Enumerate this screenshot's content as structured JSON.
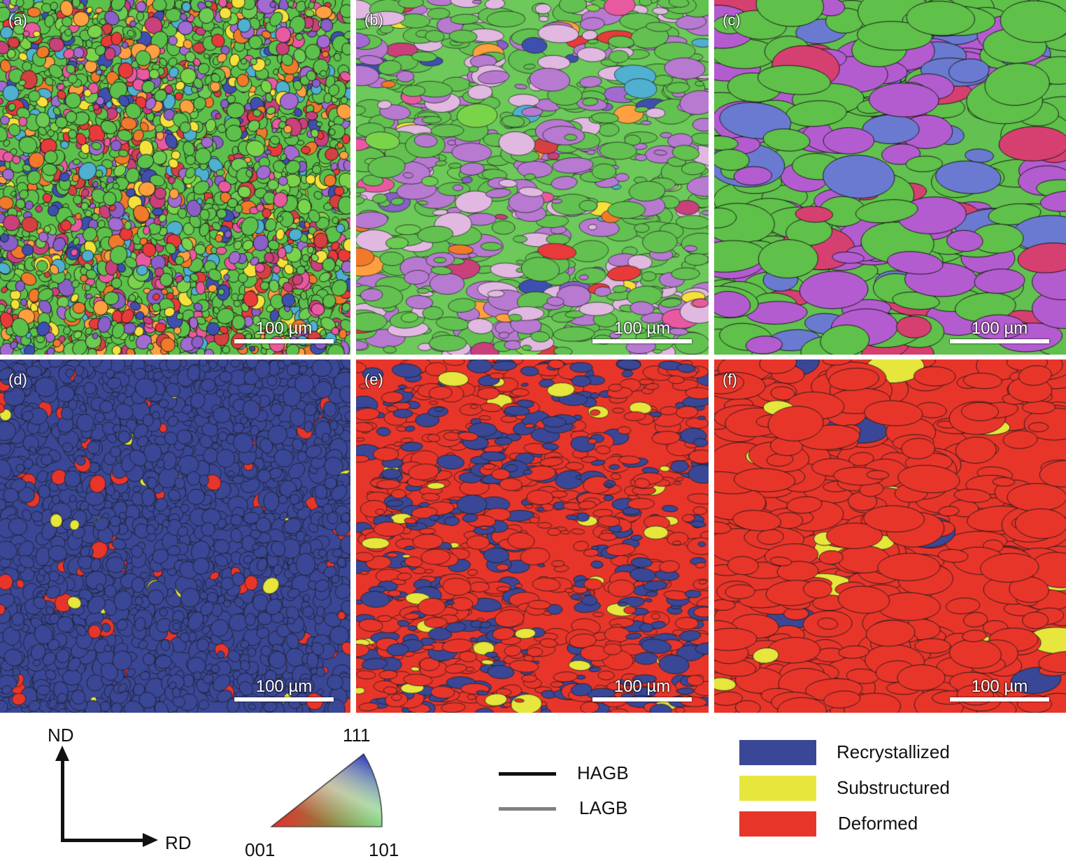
{
  "panels": [
    {
      "label": "(a)",
      "scale": "100 µm",
      "map": "ipf",
      "variant": "fine"
    },
    {
      "label": "(b)",
      "scale": "100 µm",
      "map": "ipf",
      "variant": "mixed"
    },
    {
      "label": "(c)",
      "scale": "100 µm",
      "map": "ipf",
      "variant": "coarse"
    },
    {
      "label": "(d)",
      "scale": "100 µm",
      "map": "recrystallization",
      "variant": "recrystallized"
    },
    {
      "label": "(e)",
      "scale": "100 µm",
      "map": "recrystallization",
      "variant": "mixed"
    },
    {
      "label": "(f)",
      "scale": "100 µm",
      "map": "recrystallization",
      "variant": "deformed"
    }
  ],
  "axes": {
    "vertical": "ND",
    "horizontal": "RD"
  },
  "ipf_triangle": {
    "top": "111",
    "left": "001",
    "right": "101"
  },
  "boundaries": [
    {
      "label": "HAGB",
      "color": "#111111"
    },
    {
      "label": "LAGB",
      "color": "#808080"
    }
  ],
  "categories": [
    {
      "label": "Recrystallized",
      "color": "#3a4796"
    },
    {
      "label": "Substructured",
      "color": "#e6e63c"
    },
    {
      "label": "Deformed",
      "color": "#e8352a"
    }
  ]
}
